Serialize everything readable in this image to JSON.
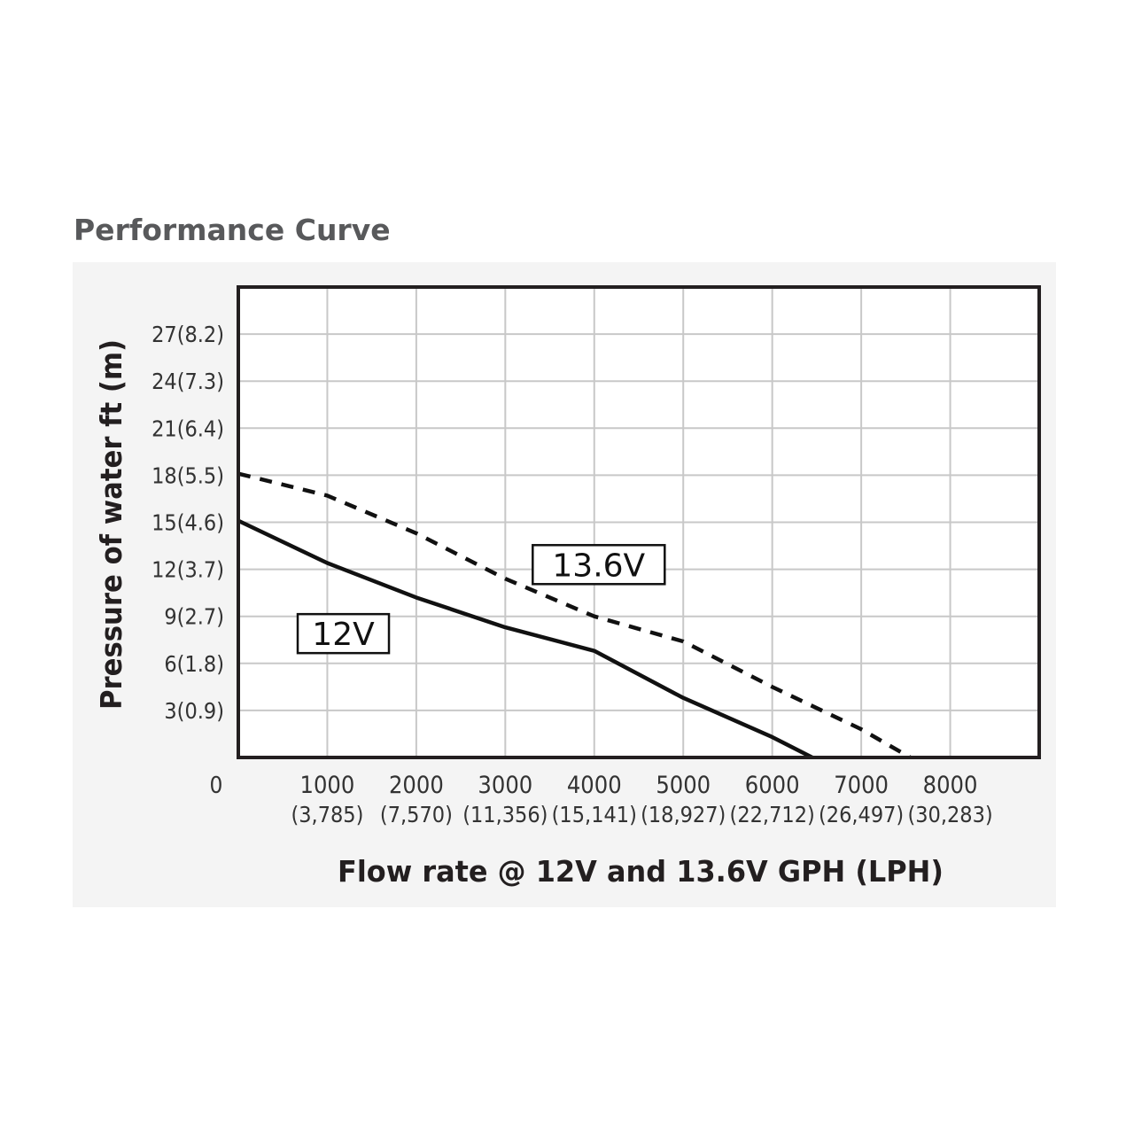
{
  "title": "Performance Curve",
  "chart_data": {
    "type": "line",
    "xlabel": "Flow rate @ 12V and 13.6V GPH (LPH)",
    "ylabel": "Pressure of water ft (m)",
    "xlim": [
      0,
      9000
    ],
    "ylim": [
      0,
      30
    ],
    "origin_label": "0",
    "x_ticks": [
      {
        "value": 1000,
        "label": "1000",
        "sublabel": "(3,785)"
      },
      {
        "value": 2000,
        "label": "2000",
        "sublabel": "(7,570)"
      },
      {
        "value": 3000,
        "label": "3000",
        "sublabel": "(11,356)"
      },
      {
        "value": 4000,
        "label": "4000",
        "sublabel": "(15,141)"
      },
      {
        "value": 5000,
        "label": "5000",
        "sublabel": "(18,927)"
      },
      {
        "value": 6000,
        "label": "6000",
        "sublabel": "(22,712)"
      },
      {
        "value": 7000,
        "label": "7000",
        "sublabel": "(26,497)"
      },
      {
        "value": 8000,
        "label": "8000",
        "sublabel": "(30,283)"
      }
    ],
    "y_ticks": [
      {
        "value": 3,
        "label": "3(0.9)"
      },
      {
        "value": 6,
        "label": "6(1.8)"
      },
      {
        "value": 9,
        "label": "9(2.7)"
      },
      {
        "value": 12,
        "label": "12(3.7)"
      },
      {
        "value": 15,
        "label": "15(4.6)"
      },
      {
        "value": 18,
        "label": "18(5.5)"
      },
      {
        "value": 21,
        "label": "21(6.4)"
      },
      {
        "value": 24,
        "label": "24(7.3)"
      },
      {
        "value": 27,
        "label": "27(8.2)"
      }
    ],
    "grid": true,
    "series": [
      {
        "name": "12V",
        "style": "solid",
        "x": [
          0,
          1000,
          2000,
          3000,
          4000,
          5000,
          6000,
          6450
        ],
        "y": [
          15.1,
          12.4,
          10.2,
          8.3,
          6.8,
          3.8,
          1.3,
          0
        ]
      },
      {
        "name": "13.6V",
        "style": "dashed",
        "x": [
          0,
          1000,
          2000,
          3000,
          4000,
          5000,
          6000,
          7000,
          7550
        ],
        "y": [
          18.1,
          16.7,
          14.3,
          11.4,
          9.0,
          7.4,
          4.5,
          1.8,
          0
        ]
      }
    ],
    "colors": {
      "line": "#111111",
      "grid": "#c8c8c8",
      "frame": "#231f20"
    }
  }
}
